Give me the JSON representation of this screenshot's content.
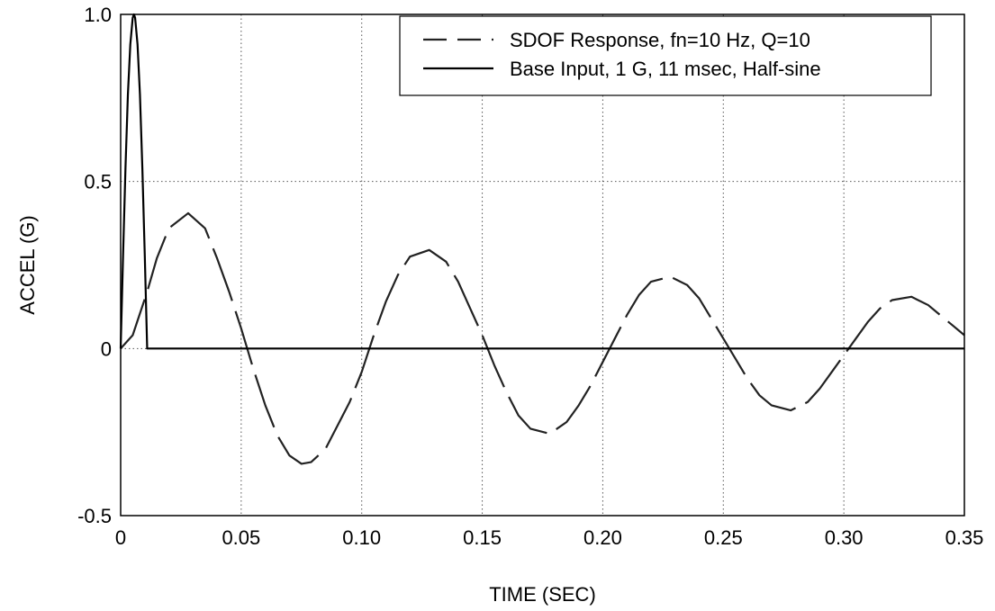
{
  "chart_data": {
    "type": "line",
    "title": "",
    "xlabel": "TIME (SEC)",
    "ylabel": "ACCEL (G)",
    "xlim": [
      0,
      0.35
    ],
    "ylim": [
      -0.5,
      1.0
    ],
    "grid": true,
    "legend_position": "top-right",
    "x_ticks": [
      0,
      0.05,
      0.1,
      0.15,
      0.2,
      0.25,
      0.3,
      0.35
    ],
    "x_tick_labels": [
      "0",
      "0.05",
      "0.10",
      "0.15",
      "0.20",
      "0.25",
      "0.30",
      "0.35"
    ],
    "y_ticks": [
      -0.5,
      0,
      0.5,
      1.0
    ],
    "y_tick_labels": [
      "-0.5",
      "0",
      "0.5",
      "1.0"
    ],
    "series": [
      {
        "name": "SDOF Response, fn=10 Hz, Q=10",
        "style": "dashed",
        "color": "#222222",
        "x": [
          0,
          0.005,
          0.011,
          0.015,
          0.02,
          0.028,
          0.035,
          0.04,
          0.045,
          0.05,
          0.055,
          0.06,
          0.065,
          0.07,
          0.075,
          0.079,
          0.085,
          0.09,
          0.095,
          0.1,
          0.105,
          0.11,
          0.115,
          0.12,
          0.128,
          0.135,
          0.14,
          0.145,
          0.15,
          0.155,
          0.16,
          0.165,
          0.17,
          0.178,
          0.185,
          0.19,
          0.195,
          0.2,
          0.205,
          0.21,
          0.215,
          0.22,
          0.228,
          0.235,
          0.24,
          0.245,
          0.25,
          0.255,
          0.26,
          0.265,
          0.27,
          0.278,
          0.285,
          0.29,
          0.295,
          0.3,
          0.305,
          0.31,
          0.315,
          0.32,
          0.328,
          0.335,
          0.34,
          0.345,
          0.35
        ],
        "y": [
          0,
          0.04,
          0.17,
          0.27,
          0.36,
          0.405,
          0.36,
          0.27,
          0.17,
          0.06,
          -0.06,
          -0.17,
          -0.26,
          -0.32,
          -0.345,
          -0.34,
          -0.3,
          -0.23,
          -0.16,
          -0.07,
          0.04,
          0.14,
          0.22,
          0.275,
          0.295,
          0.26,
          0.2,
          0.12,
          0.04,
          -0.05,
          -0.13,
          -0.2,
          -0.24,
          -0.255,
          -0.22,
          -0.17,
          -0.11,
          -0.04,
          0.03,
          0.1,
          0.16,
          0.2,
          0.215,
          0.19,
          0.15,
          0.09,
          0.03,
          -0.03,
          -0.09,
          -0.14,
          -0.17,
          -0.185,
          -0.16,
          -0.12,
          -0.07,
          -0.02,
          0.03,
          0.08,
          0.12,
          0.145,
          0.155,
          0.13,
          0.1,
          0.07,
          0.04
        ]
      },
      {
        "name": "Base Input, 1 G, 11 msec, Half-sine",
        "style": "solid",
        "color": "#000000",
        "x": [
          0,
          0.001,
          0.002,
          0.003,
          0.004,
          0.005,
          0.0055,
          0.006,
          0.007,
          0.008,
          0.009,
          0.01,
          0.011,
          0.35
        ],
        "y": [
          0,
          0.28,
          0.54,
          0.76,
          0.91,
          0.99,
          1.0,
          0.99,
          0.91,
          0.76,
          0.54,
          0.28,
          0,
          0
        ]
      }
    ]
  }
}
